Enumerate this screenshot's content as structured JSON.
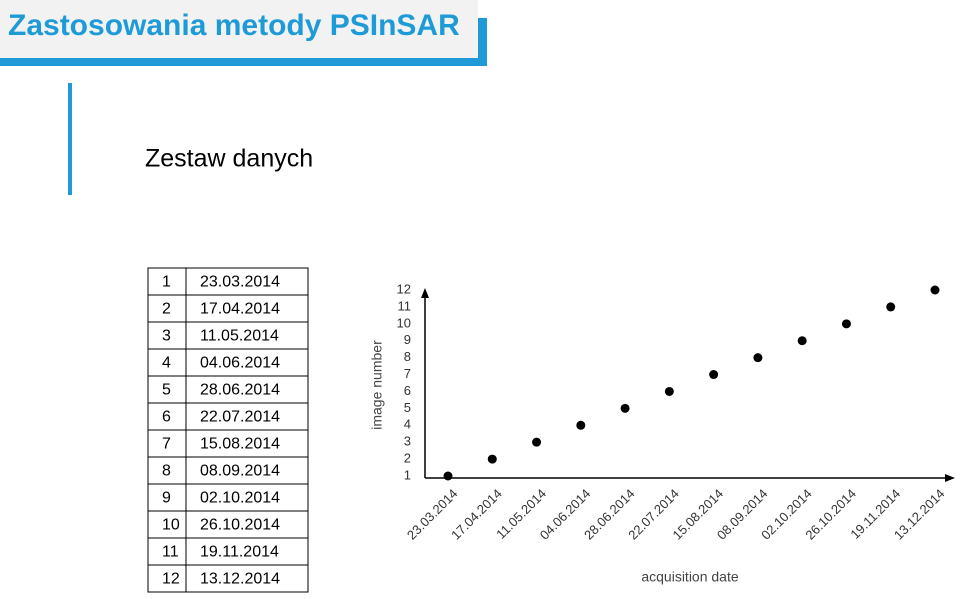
{
  "header": {
    "title": "Zastosowania metody PSInSAR"
  },
  "subtitle": "Zestaw danych",
  "table": {
    "rows": [
      [
        1,
        "23.03.2014"
      ],
      [
        2,
        "17.04.2014"
      ],
      [
        3,
        "11.05.2014"
      ],
      [
        4,
        "04.06.2014"
      ],
      [
        5,
        "28.06.2014"
      ],
      [
        6,
        "22.07.2014"
      ],
      [
        7,
        "15.08.2014"
      ],
      [
        8,
        "08.09.2014"
      ],
      [
        9,
        "02.10.2014"
      ],
      [
        10,
        "26.10.2014"
      ],
      [
        11,
        "19.11.2014"
      ],
      [
        12,
        "13.12.2014"
      ]
    ]
  },
  "chart_data": {
    "type": "scatter",
    "x_label": "acquisition date",
    "y_label": "image number",
    "categories": [
      "23.03.2014",
      "17.04.2014",
      "11.05.2014",
      "04.06.2014",
      "28.06.2014",
      "22.07.2014",
      "15.08.2014",
      "08.09.2014",
      "02.10.2014",
      "26.10.2014",
      "19.11.2014",
      "13.12.2014"
    ],
    "values": [
      1,
      2,
      3,
      4,
      5,
      6,
      7,
      8,
      9,
      10,
      11,
      12
    ],
    "color": "#000000",
    "ylim": [
      1,
      12
    ],
    "yticks": [
      1,
      2,
      3,
      4,
      5,
      6,
      7,
      8,
      9,
      10,
      11,
      12
    ],
    "grid": false
  }
}
